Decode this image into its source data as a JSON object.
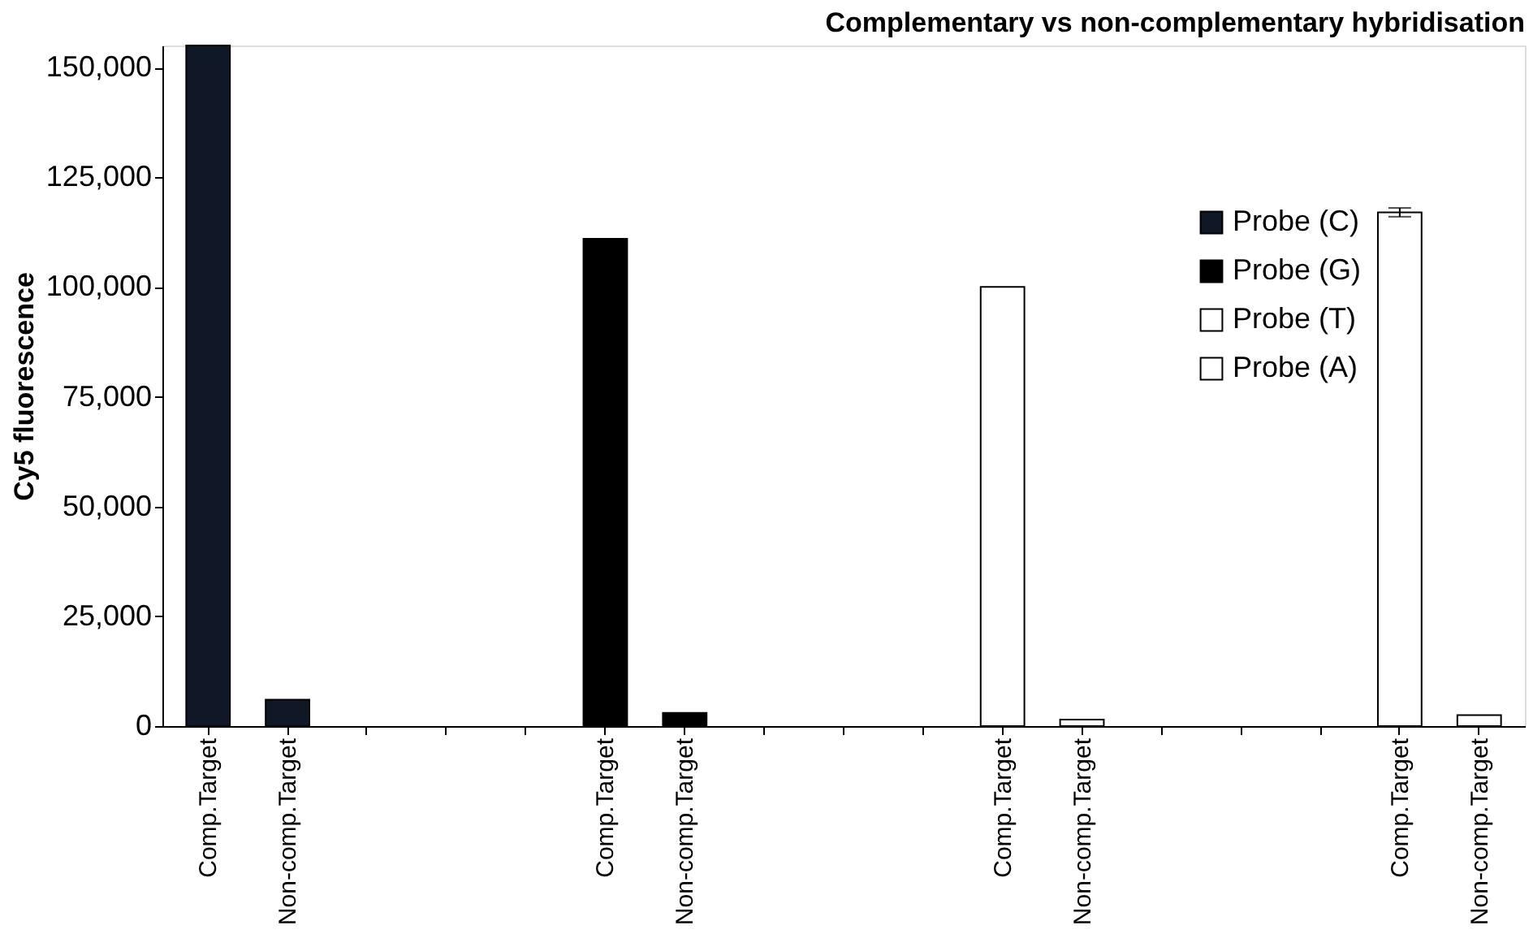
{
  "chart_data": {
    "type": "bar",
    "title": "Complementary vs non-complementary hybridisation",
    "ylabel": "Cy5 fluorescence",
    "categories": [
      "Comp.Target",
      "Non-comp.Target",
      null,
      null,
      null,
      "Comp.Target",
      "Non-comp.Target",
      null,
      null,
      null,
      "Comp.Target",
      "Non-comp.Target",
      null,
      null,
      null,
      "Comp.Target",
      "Non-comp.Target"
    ],
    "series": [
      {
        "name": "Probe (C)",
        "color": "#101828",
        "values": [
          155000,
          6000,
          null,
          null,
          null,
          null,
          null,
          null,
          null,
          null,
          null,
          null,
          null,
          null,
          null,
          null,
          null
        ]
      },
      {
        "name": "Probe (G)",
        "color": "#000000",
        "values": [
          null,
          null,
          null,
          null,
          null,
          111000,
          3000,
          null,
          null,
          null,
          null,
          null,
          null,
          null,
          null,
          null,
          null
        ]
      },
      {
        "name": "Probe (T)",
        "color": "#ffffff",
        "values": [
          null,
          null,
          null,
          null,
          null,
          null,
          null,
          null,
          null,
          null,
          100000,
          1500,
          null,
          null,
          null,
          null,
          null
        ]
      },
      {
        "name": "Probe (A)",
        "color": "#ffffff",
        "values": [
          null,
          null,
          null,
          null,
          null,
          null,
          null,
          null,
          null,
          null,
          null,
          null,
          null,
          null,
          null,
          117000,
          2500
        ],
        "errors": [
          null,
          null,
          null,
          null,
          null,
          null,
          null,
          null,
          null,
          null,
          null,
          null,
          null,
          null,
          null,
          1000,
          null
        ]
      }
    ],
    "ylim": [
      0,
      155000
    ],
    "yticks": [
      0,
      {
        "value": 25000,
        "label": "25,000"
      },
      {
        "value": 50000,
        "label": "50,000"
      },
      {
        "value": 75000,
        "label": "75,000"
      },
      {
        "value": 100000,
        "label": "100,000"
      },
      {
        "value": 125000,
        "label": "125,000"
      },
      {
        "value": 150000,
        "label": "150,000"
      }
    ],
    "grid": false,
    "legend": "top right"
  }
}
